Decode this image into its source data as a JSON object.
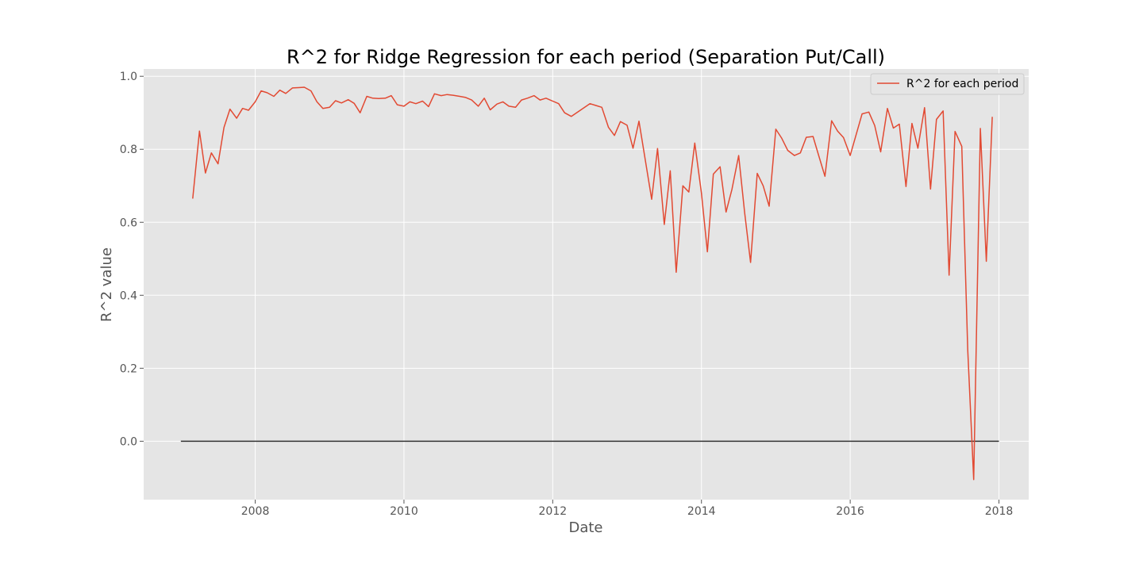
{
  "chart_data": {
    "type": "line",
    "title": "R^2 for Ridge Regression for each period (Separation Put/Call)",
    "xlabel": "Date",
    "ylabel": "R^2 value",
    "xlim": [
      2006.5,
      2018.4
    ],
    "ylim": [
      -0.16,
      1.02
    ],
    "x_ticks": [
      2008,
      2010,
      2012,
      2014,
      2016,
      2018
    ],
    "x_tick_labels": [
      "2008",
      "2010",
      "2012",
      "2014",
      "2016",
      "2018"
    ],
    "y_ticks": [
      0.0,
      0.2,
      0.4,
      0.6,
      0.8,
      1.0
    ],
    "y_tick_labels": [
      "0.0",
      "0.2",
      "0.4",
      "0.6",
      "0.8",
      "1.0"
    ],
    "grid": true,
    "legend": {
      "position": "top-right",
      "entries": [
        "R^2 for each period"
      ]
    },
    "colors": {
      "series": "#e24a33",
      "baseline": "#333333",
      "plot_bg": "#e5e5e5",
      "grid": "#ffffff"
    },
    "baseline": {
      "y": 0.0,
      "x_start": 2007.0,
      "x_end": 2018.0
    },
    "series": [
      {
        "name": "R^2 for each period",
        "points": [
          [
            2007.16,
            0.665
          ],
          [
            2007.25,
            0.85
          ],
          [
            2007.33,
            0.735
          ],
          [
            2007.41,
            0.79
          ],
          [
            2007.5,
            0.76
          ],
          [
            2007.58,
            0.86
          ],
          [
            2007.66,
            0.91
          ],
          [
            2007.75,
            0.885
          ],
          [
            2007.83,
            0.912
          ],
          [
            2007.91,
            0.907
          ],
          [
            2008.0,
            0.93
          ],
          [
            2008.08,
            0.96
          ],
          [
            2008.16,
            0.955
          ],
          [
            2008.25,
            0.945
          ],
          [
            2008.33,
            0.962
          ],
          [
            2008.41,
            0.953
          ],
          [
            2008.5,
            0.968
          ],
          [
            2008.58,
            0.969
          ],
          [
            2008.66,
            0.97
          ],
          [
            2008.75,
            0.96
          ],
          [
            2008.83,
            0.93
          ],
          [
            2008.91,
            0.912
          ],
          [
            2009.0,
            0.915
          ],
          [
            2009.08,
            0.933
          ],
          [
            2009.16,
            0.927
          ],
          [
            2009.25,
            0.936
          ],
          [
            2009.33,
            0.926
          ],
          [
            2009.41,
            0.9
          ],
          [
            2009.5,
            0.945
          ],
          [
            2009.58,
            0.94
          ],
          [
            2009.66,
            0.939
          ],
          [
            2009.75,
            0.94
          ],
          [
            2009.83,
            0.947
          ],
          [
            2009.91,
            0.922
          ],
          [
            2010.0,
            0.918
          ],
          [
            2010.08,
            0.93
          ],
          [
            2010.16,
            0.925
          ],
          [
            2010.25,
            0.932
          ],
          [
            2010.33,
            0.917
          ],
          [
            2010.41,
            0.952
          ],
          [
            2010.5,
            0.947
          ],
          [
            2010.58,
            0.95
          ],
          [
            2010.66,
            0.948
          ],
          [
            2010.75,
            0.945
          ],
          [
            2010.83,
            0.942
          ],
          [
            2010.91,
            0.935
          ],
          [
            2011.0,
            0.918
          ],
          [
            2011.08,
            0.94
          ],
          [
            2011.16,
            0.908
          ],
          [
            2011.25,
            0.924
          ],
          [
            2011.33,
            0.93
          ],
          [
            2011.41,
            0.918
          ],
          [
            2011.5,
            0.915
          ],
          [
            2011.58,
            0.935
          ],
          [
            2011.66,
            0.94
          ],
          [
            2011.75,
            0.947
          ],
          [
            2011.83,
            0.935
          ],
          [
            2011.91,
            0.94
          ],
          [
            2012.0,
            0.932
          ],
          [
            2012.08,
            0.925
          ],
          [
            2012.16,
            0.9
          ],
          [
            2012.25,
            0.89
          ],
          [
            2012.5,
            0.925
          ],
          [
            2012.58,
            0.92
          ],
          [
            2012.66,
            0.915
          ],
          [
            2012.75,
            0.86
          ],
          [
            2012.83,
            0.838
          ],
          [
            2012.91,
            0.876
          ],
          [
            2013.0,
            0.866
          ],
          [
            2013.08,
            0.803
          ],
          [
            2013.16,
            0.877
          ],
          [
            2013.33,
            0.663
          ],
          [
            2013.41,
            0.802
          ],
          [
            2013.5,
            0.594
          ],
          [
            2013.58,
            0.741
          ],
          [
            2013.66,
            0.463
          ],
          [
            2013.75,
            0.7
          ],
          [
            2013.83,
            0.683
          ],
          [
            2013.91,
            0.817
          ],
          [
            2014.0,
            0.68
          ],
          [
            2014.08,
            0.519
          ],
          [
            2014.16,
            0.732
          ],
          [
            2014.25,
            0.752
          ],
          [
            2014.33,
            0.628
          ],
          [
            2014.41,
            0.69
          ],
          [
            2014.5,
            0.783
          ],
          [
            2014.58,
            0.627
          ],
          [
            2014.66,
            0.49
          ],
          [
            2014.75,
            0.734
          ],
          [
            2014.83,
            0.7
          ],
          [
            2014.91,
            0.644
          ],
          [
            2015.0,
            0.855
          ],
          [
            2015.08,
            0.83
          ],
          [
            2015.16,
            0.797
          ],
          [
            2015.25,
            0.783
          ],
          [
            2015.33,
            0.79
          ],
          [
            2015.41,
            0.833
          ],
          [
            2015.5,
            0.835
          ],
          [
            2015.58,
            0.78
          ],
          [
            2015.66,
            0.726
          ],
          [
            2015.75,
            0.878
          ],
          [
            2015.83,
            0.85
          ],
          [
            2015.91,
            0.832
          ],
          [
            2016.0,
            0.783
          ],
          [
            2016.08,
            0.84
          ],
          [
            2016.16,
            0.897
          ],
          [
            2016.25,
            0.902
          ],
          [
            2016.33,
            0.865
          ],
          [
            2016.41,
            0.793
          ],
          [
            2016.5,
            0.912
          ],
          [
            2016.58,
            0.858
          ],
          [
            2016.66,
            0.869
          ],
          [
            2016.75,
            0.698
          ],
          [
            2016.83,
            0.871
          ],
          [
            2016.91,
            0.803
          ],
          [
            2017.0,
            0.914
          ],
          [
            2017.08,
            0.691
          ],
          [
            2017.16,
            0.882
          ],
          [
            2017.25,
            0.905
          ],
          [
            2017.33,
            0.455
          ],
          [
            2017.41,
            0.849
          ],
          [
            2017.5,
            0.808
          ],
          [
            2017.58,
            0.25
          ],
          [
            2017.66,
            -0.105
          ],
          [
            2017.75,
            0.857
          ],
          [
            2017.83,
            0.493
          ],
          [
            2017.91,
            0.889
          ]
        ]
      }
    ]
  }
}
